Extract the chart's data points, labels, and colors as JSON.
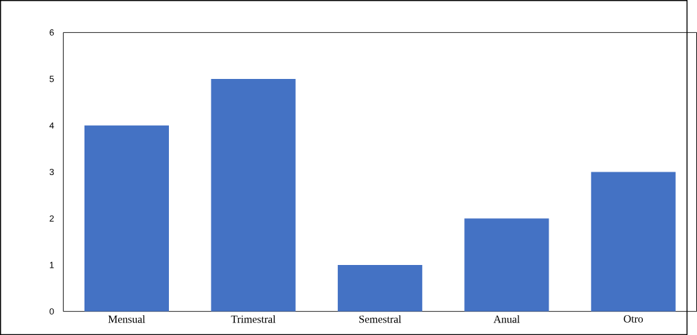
{
  "chart_data": {
    "type": "bar",
    "categories": [
      "Mensual",
      "Trimestral",
      "Semestral",
      "Anual",
      "Otro"
    ],
    "values": [
      4,
      5,
      1,
      2,
      3
    ],
    "color": "#4472c4",
    "ylim": [
      0,
      6
    ],
    "yticks": [
      0,
      1,
      2,
      3,
      4,
      5,
      6
    ]
  }
}
